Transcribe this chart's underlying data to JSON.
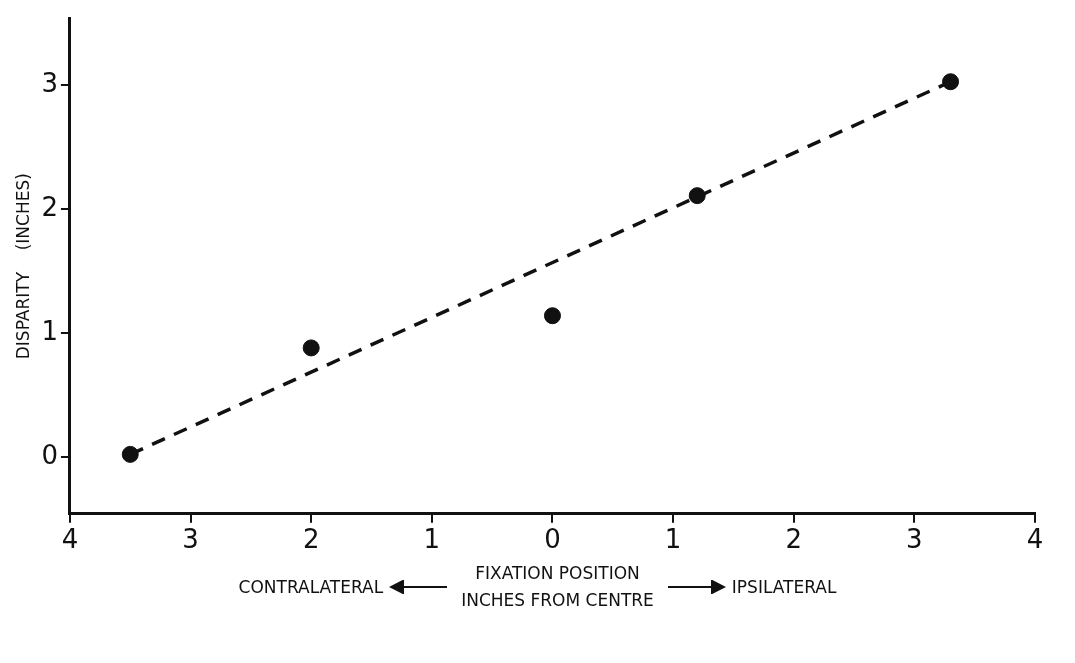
{
  "chart_data": {
    "type": "scatter",
    "xlabel": "FIXATION POSITION\nINCHES FROM CENTRE",
    "ylabel": "DISPARITY    (INCHES)",
    "annotations": [
      "CONTRALATERAL",
      "IPSILATERAL"
    ],
    "xlim": [
      -4,
      4
    ],
    "ylim": [
      -0.46,
      3.54
    ],
    "xticks": [
      {
        "value": -4,
        "label": "4"
      },
      {
        "value": -3,
        "label": "3"
      },
      {
        "value": -2,
        "label": "2"
      },
      {
        "value": -1,
        "label": "1"
      },
      0,
      1,
      2,
      3,
      4
    ],
    "yticks": [
      0,
      1,
      2,
      3
    ],
    "grid": false,
    "legend": false,
    "marker": "circle",
    "series": [
      {
        "color": "#111111",
        "x": [
          -3.5,
          -2,
          0,
          1.2,
          3.3
        ],
        "values": [
          0.02,
          0.88,
          1.14,
          2.11,
          3.03
        ]
      },
      {
        "type": "line",
        "line_style": "dashed",
        "marker": "none",
        "color": "#111111",
        "x": [
          -3.5,
          3.3
        ],
        "values": [
          0.02,
          3.03
        ]
      }
    ]
  }
}
